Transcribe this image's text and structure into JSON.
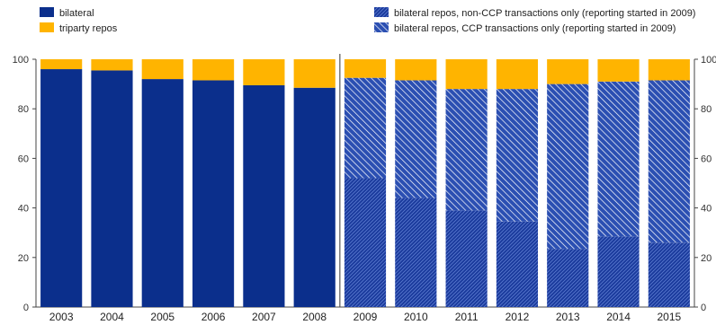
{
  "chart_data": {
    "type": "bar",
    "stacked": true,
    "categories": [
      "2003",
      "2004",
      "2005",
      "2006",
      "2007",
      "2008",
      "2009",
      "2010",
      "2011",
      "2012",
      "2013",
      "2014",
      "2015"
    ],
    "series": [
      {
        "name": "bilateral",
        "color": "#0b2f8c",
        "pattern": "solid",
        "values": [
          96,
          95.5,
          92,
          91.5,
          89.5,
          88.5,
          null,
          null,
          null,
          null,
          null,
          null,
          null
        ]
      },
      {
        "name": "bilateral repos, non-CCP transactions only (reporting started in 2009)",
        "color": "#1a3fa0",
        "pattern": "dense-hatch",
        "values": [
          null,
          null,
          null,
          null,
          null,
          null,
          52,
          44,
          39,
          34.5,
          23.5,
          28.5,
          26
        ]
      },
      {
        "name": "bilateral repos, CCP transactions only (reporting started in 2009)",
        "color": "#2a4fb0",
        "pattern": "diagonal-hatch",
        "values": [
          null,
          null,
          null,
          null,
          null,
          null,
          40.5,
          47.5,
          49,
          53.5,
          66.5,
          62.5,
          65.5
        ]
      },
      {
        "name": "triparty repos",
        "color": "#ffb400",
        "pattern": "solid",
        "values": [
          4,
          4.5,
          8,
          8.5,
          10.5,
          11.5,
          7.5,
          8.5,
          12,
          12,
          10,
          9,
          8.5
        ]
      }
    ],
    "ylim": [
      0,
      100
    ],
    "yticks": [
      "0",
      "20",
      "40",
      "60",
      "80",
      "100"
    ],
    "legend_left": [
      "bilateral",
      "triparty repos"
    ],
    "legend_right": [
      "bilateral repos, non-CCP transactions only (reporting started in 2009)",
      "bilateral repos, CCP transactions only (reporting started in 2009)"
    ],
    "divider_after": "2008"
  }
}
